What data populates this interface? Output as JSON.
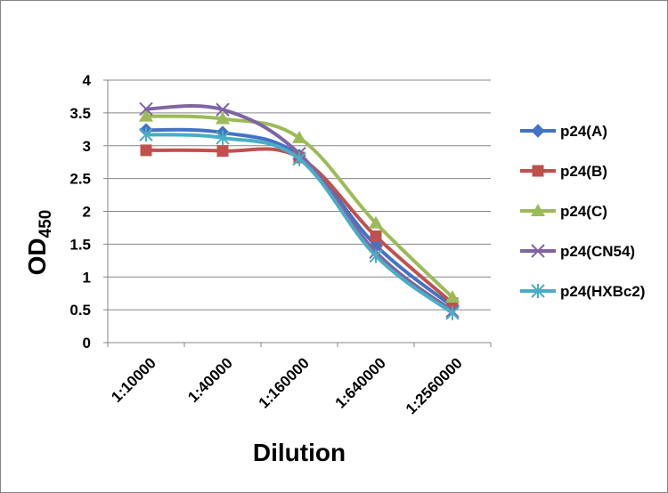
{
  "chart_data": {
    "type": "line",
    "title": "",
    "xlabel": "Dilution",
    "ylabel": {
      "base": "OD",
      "subscript": "450"
    },
    "categories": [
      "1:10000",
      "1:40000",
      "1:160000",
      "1:640000",
      "1:2560000"
    ],
    "ylim": [
      0,
      4
    ],
    "yticks": [
      "0",
      "0.5",
      "1",
      "1.5",
      "2",
      "2.5",
      "3",
      "3.5",
      "4"
    ],
    "grid": "horizontal",
    "legend_position": "right",
    "smooth": true,
    "series": [
      {
        "name": "p24(A)",
        "color": "#4472C4",
        "marker": "diamond",
        "values": [
          3.24,
          3.2,
          2.85,
          1.48,
          0.55
        ]
      },
      {
        "name": "p24(B)",
        "color": "#C0504D",
        "marker": "square",
        "values": [
          2.93,
          2.92,
          2.82,
          1.62,
          0.6
        ]
      },
      {
        "name": "p24(C)",
        "color": "#9BBB59",
        "marker": "triangle",
        "values": [
          3.45,
          3.41,
          3.12,
          1.82,
          0.69
        ]
      },
      {
        "name": "p24(CN54)",
        "color": "#8064A2",
        "marker": "x",
        "values": [
          3.56,
          3.55,
          2.88,
          1.38,
          0.48
        ]
      },
      {
        "name": "p24(HXBc2)",
        "color": "#4BACC6",
        "marker": "asterisk",
        "values": [
          3.17,
          3.12,
          2.8,
          1.32,
          0.45
        ]
      }
    ]
  }
}
